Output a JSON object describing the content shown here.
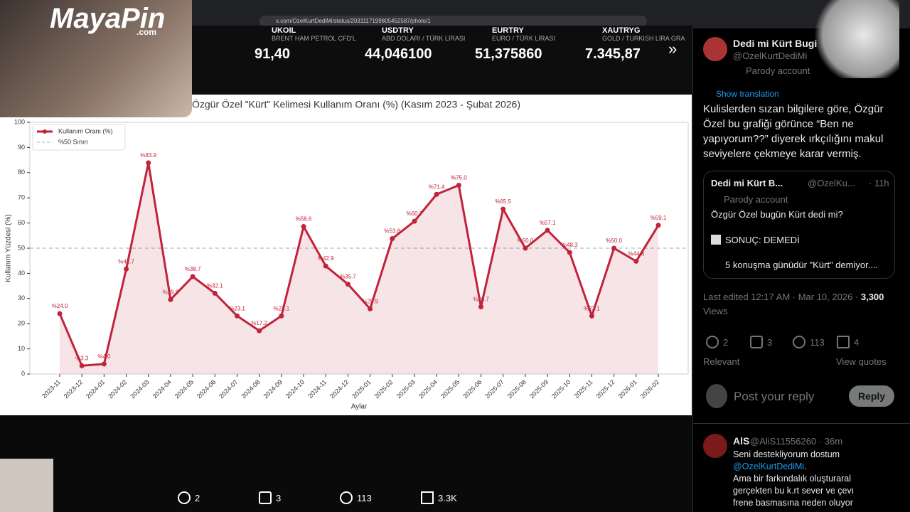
{
  "browser": {
    "url": "x.com/OzelKurtDediMi/status/2031117199805452587/photo/1"
  },
  "overlay": {
    "logo": "MayaPin",
    "logo_suffix": ".com"
  },
  "ticker": [
    {
      "symbol": "UKOIL",
      "name": "BRENT HAM PETROL CFD'L",
      "price": "91,40"
    },
    {
      "symbol": "USDTRY",
      "name": "ABD DOLARI / TÜRK LİRASI",
      "price": "44,046100"
    },
    {
      "symbol": "EURTRY",
      "name": "EURO / TÜRK LİRASI",
      "price": "51,375860"
    },
    {
      "symbol": "XAUTRYG",
      "name": "GOLD / TURKISH LIRA GRA",
      "price": "7.345,87"
    }
  ],
  "chart_data": {
    "type": "line",
    "title": "Özgür Özel \"Kürt\" Kelimesi Kullanım Oranı (%) (Kasım 2023 - Şubat 2026)",
    "x_label": "Aylar",
    "y_label": "Kullanım Yüzdesi (%)",
    "categories": [
      "2023-11",
      "2023-12",
      "2024-01",
      "2024-02",
      "2024-03",
      "2024-04",
      "2024-05",
      "2024-06",
      "2024-07",
      "2024-08",
      "2024-09",
      "2024-10",
      "2024-11",
      "2024-12",
      "2025-01",
      "2025-02",
      "2025-03",
      "2025-04",
      "2025-05",
      "2025-06",
      "2025-07",
      "2025-08",
      "2025-09",
      "2025-10",
      "2025-11",
      "2025-12",
      "2026-01",
      "2026-02"
    ],
    "series": [
      {
        "name": "Kullanım Oranı (%)",
        "color": "#c0233a",
        "values": [
          24.0,
          3.3,
          4.0,
          41.7,
          83.9,
          29.6,
          38.7,
          32.1,
          23.1,
          17.2,
          23.1,
          58.6,
          42.9,
          35.7,
          25.9,
          53.8,
          60.7,
          71.4,
          75.0,
          26.7,
          65.5,
          50.0,
          57.1,
          48.3,
          23.1,
          50.0,
          44.8,
          59.1
        ],
        "value_labels": [
          "%24.0",
          "%3.3",
          "%4.0",
          "%41.7",
          "%83.9",
          "%29.6",
          "%38.7",
          "%32.1",
          "%23.1",
          "%17.2",
          "%23.1",
          "%58.6",
          "%42.9",
          "%35.7",
          "%25.9",
          "%53.8",
          "%60.7",
          "%71.4",
          "%75.0",
          "%26.7",
          "%65.5",
          "%50.0",
          "%57.1",
          "%48.3",
          "%23.1",
          "%50.0",
          "%44.8",
          "%59.1"
        ]
      }
    ],
    "threshold": {
      "name": "%50 Sınırı",
      "value": 50,
      "color": "#aaaaaa"
    },
    "ylim": [
      0,
      100
    ],
    "yticks": [
      0,
      10,
      20,
      30,
      40,
      50,
      60,
      70,
      80,
      90,
      100
    ],
    "legend": "upper left",
    "area_fill": true
  },
  "tweet": {
    "name": "Dedi mi Kürt Bugi",
    "handle": "@OzelKurtDediMi",
    "badge": "Parody account",
    "translate": "Show translation",
    "text": "Kulislerden sızan bilgilere göre, Özgür Özel bu grafiği görünce “Ben ne yapıyorum??” diyerek ırkçılığını makul seviyelere çekmeye karar vermiş.",
    "quote": {
      "name": "Dedi mi Kürt B...",
      "handle": "@OzelKu...",
      "time": "· 11h",
      "badge": "Parody account",
      "line1": "Özgür Özel bugün Kürt dedi mi?",
      "line2": "SONUÇ: DEMEDİ",
      "line3": "5 konuşma günüdür \"Kürt\" demiyor...."
    },
    "edited": "Last edited 12:17 AM · Mar 10, 2026 · ",
    "views_count": "3,300",
    "views": "Views",
    "stats": {
      "replies": "2",
      "reposts": "3",
      "likes": "113",
      "bookmarks": "4"
    },
    "sort": "Relevant",
    "quotes": "View quotes",
    "reply_placeholder": "Post your reply",
    "reply_button": "Reply"
  },
  "reply": {
    "name": "AlS",
    "handle": "@AliS11556260 · 36m",
    "lines": [
      "Seni destekliyorum dostum",
      "@OzelKurtDediMi",
      ".",
      "Ama bir farkındalık oluşturaral",
      "gerçekten bu k.rt sever ve çevı",
      "frene basmasına neden oluyor"
    ]
  },
  "bottom_bar": {
    "replies": "2",
    "reposts": "3",
    "likes": "113",
    "views": "3.3K"
  }
}
